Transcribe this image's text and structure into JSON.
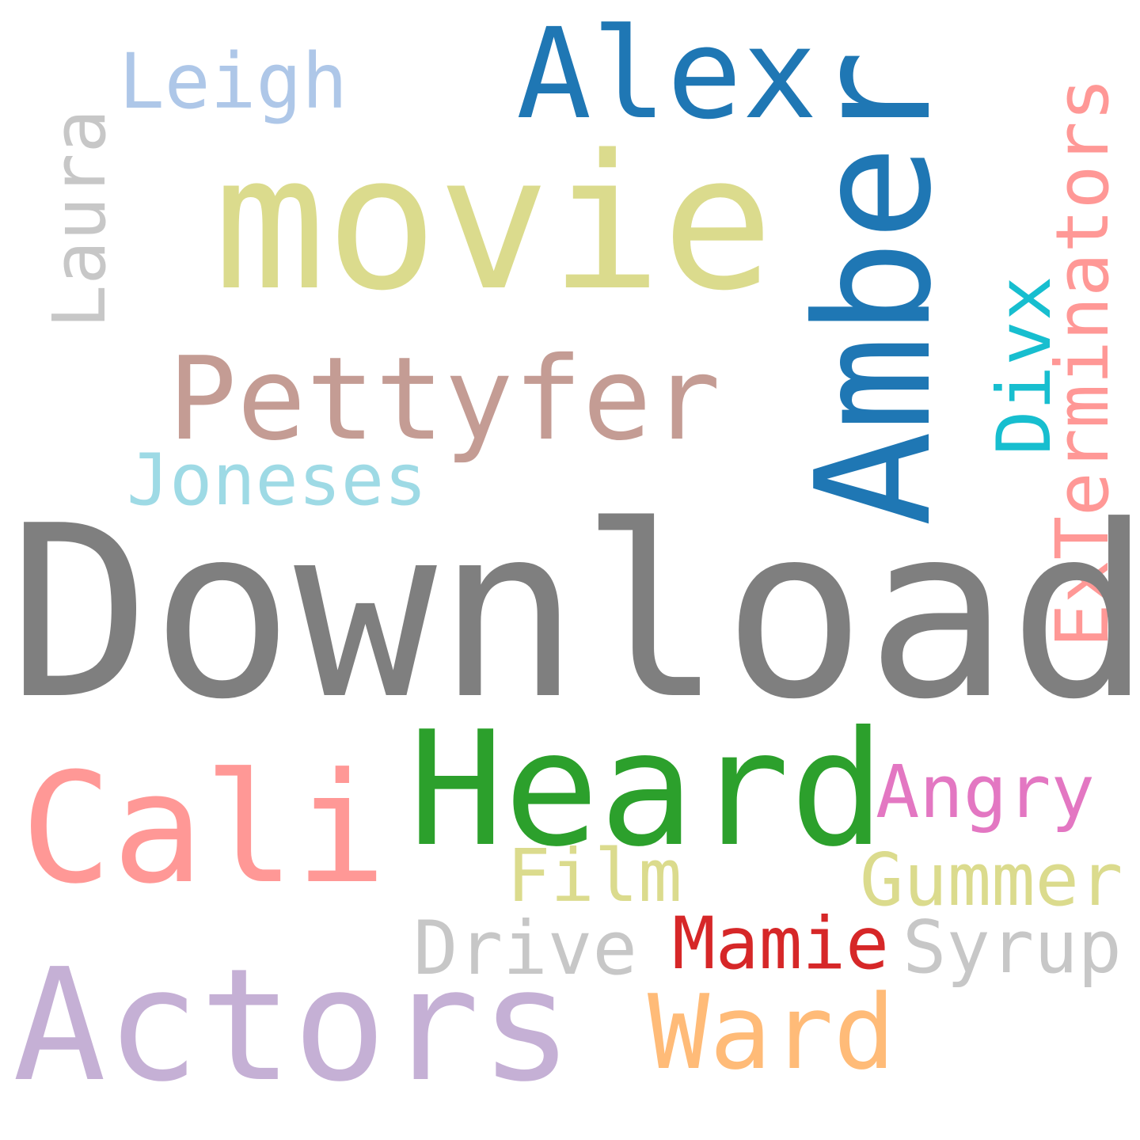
{
  "words": {
    "download": {
      "text": "Download",
      "color": "#7f7f7f"
    },
    "movie": {
      "text": "movie",
      "color": "#dbdb8d"
    },
    "amber": {
      "text": "Amber",
      "color": "#1f77b4"
    },
    "alex": {
      "text": "Alex",
      "color": "#1f77b4"
    },
    "leigh": {
      "text": "Leigh",
      "color": "#aec7e8"
    },
    "laura": {
      "text": "Laura",
      "color": "#c7c7c7"
    },
    "pettyfer": {
      "text": "Pettyfer",
      "color": "#c49c94"
    },
    "joneses": {
      "text": "Joneses",
      "color": "#9edae5"
    },
    "divx": {
      "text": "Divx",
      "color": "#17becf"
    },
    "exterminators": {
      "text": "ExTerminators",
      "color": "#ff9896"
    },
    "heard": {
      "text": "Heard",
      "color": "#2ca02c"
    },
    "cali": {
      "text": "Cali",
      "color": "#ff9896"
    },
    "angry": {
      "text": "Angry",
      "color": "#e377c2"
    },
    "film": {
      "text": "Film",
      "color": "#dbdb8d"
    },
    "gummer": {
      "text": "Gummer",
      "color": "#dbdb8d"
    },
    "drive": {
      "text": "Drive",
      "color": "#c7c7c7"
    },
    "mamie": {
      "text": "Mamie",
      "color": "#d62728"
    },
    "syrup": {
      "text": "Syrup",
      "color": "#c7c7c7"
    },
    "actors": {
      "text": "Actors",
      "color": "#c5b0d5"
    },
    "ward": {
      "text": "Ward",
      "color": "#ffbb78"
    }
  }
}
